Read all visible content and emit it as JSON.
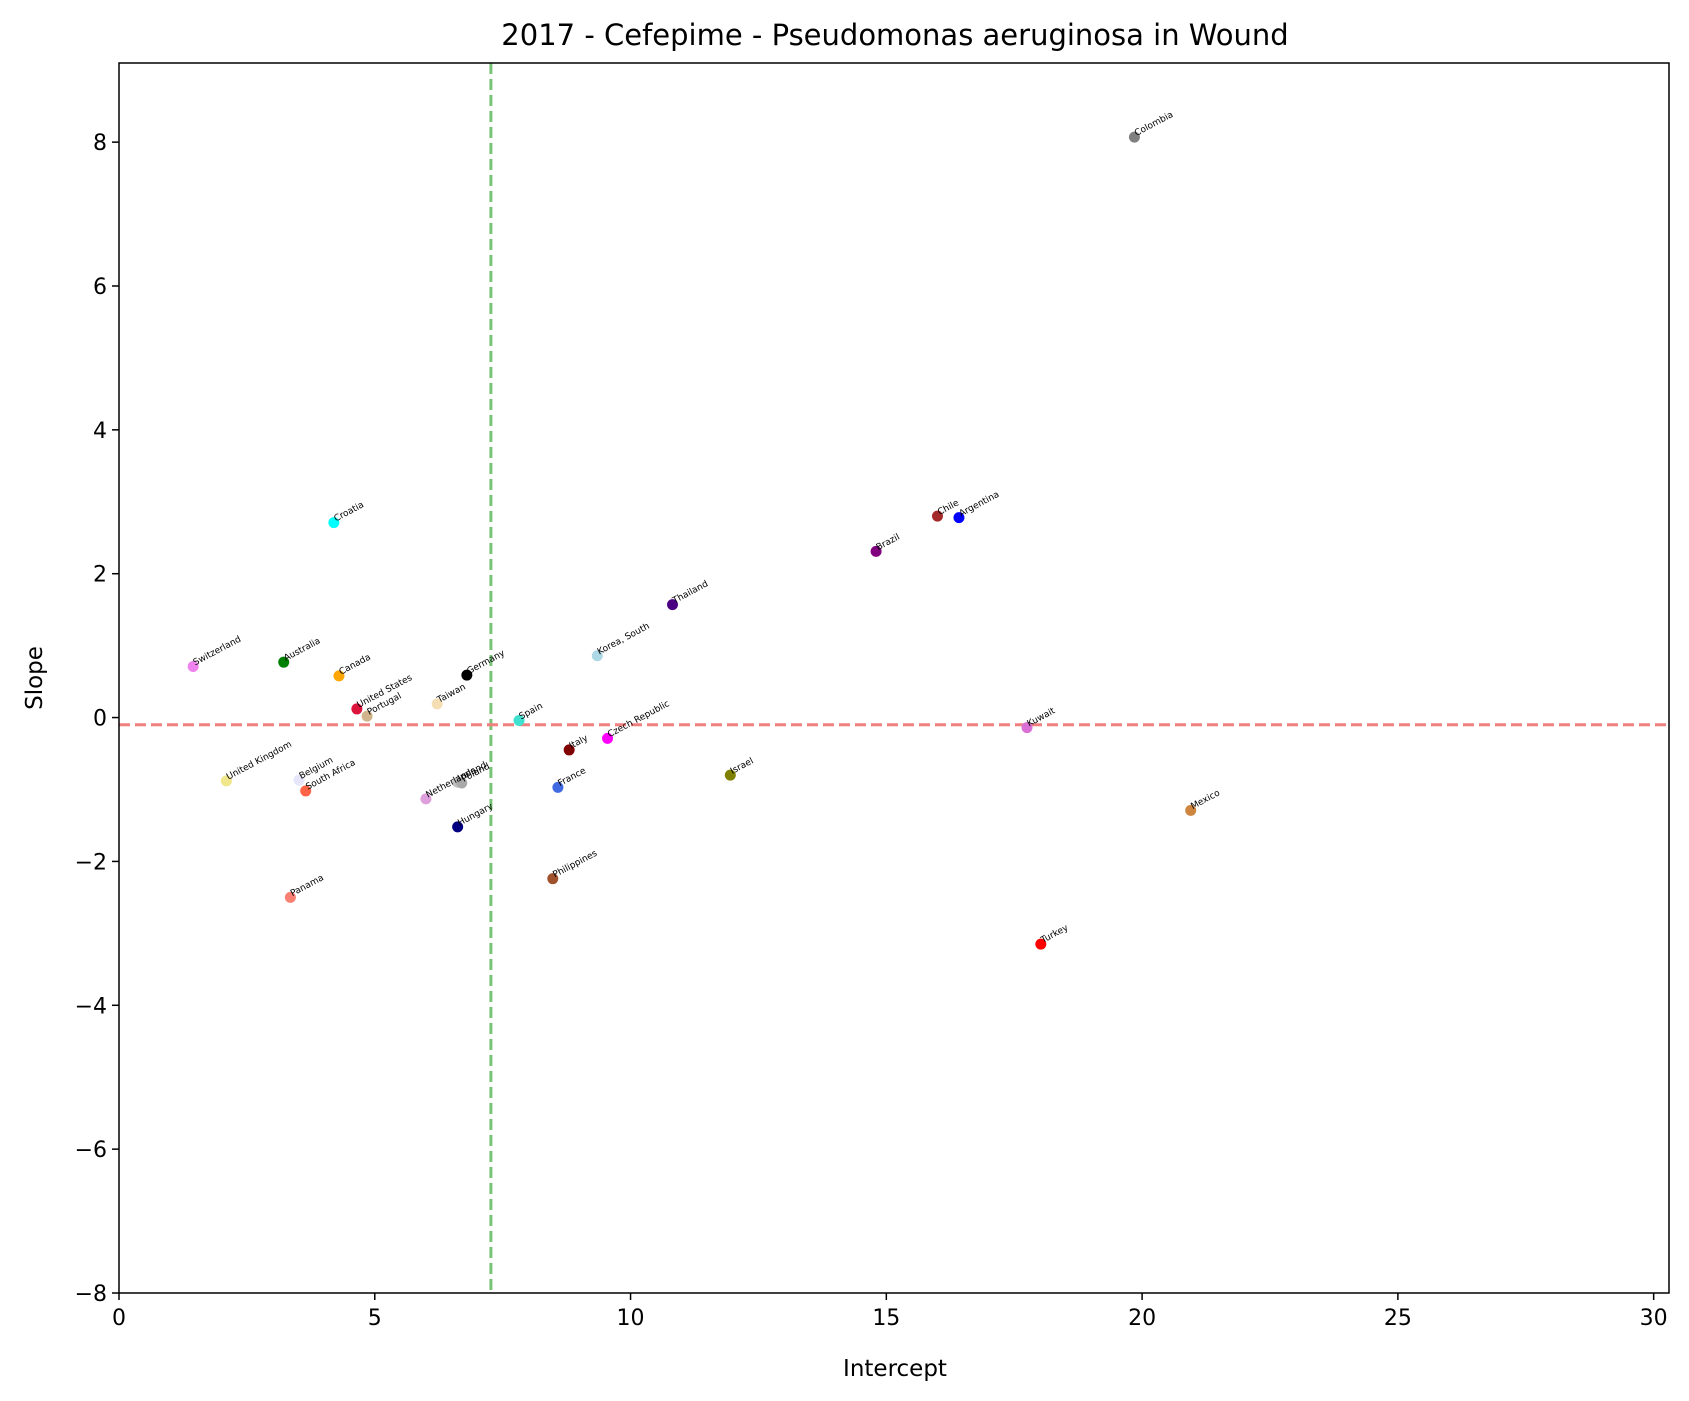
{
  "chart_data": {
    "type": "scatter",
    "title": "2017 - Cefepime - Pseudomonas aeruginosa in Wound",
    "xlabel": "Intercept",
    "ylabel": "Slope",
    "xlim": [
      0,
      30.3
    ],
    "ylim": [
      -8.0,
      9.1
    ],
    "xticks": [
      0,
      5,
      10,
      15,
      20,
      25,
      30
    ],
    "yticks": [
      -8,
      -6,
      -4,
      -2,
      0,
      2,
      4,
      6,
      8
    ],
    "xtick_labels": [
      "0",
      "5",
      "10",
      "15",
      "20",
      "25",
      "30"
    ],
    "ytick_labels": [
      "−8",
      "−6",
      "−4",
      "−2",
      "0",
      "2",
      "4",
      "6",
      "8"
    ],
    "vline": {
      "x": 7.27,
      "color": "#77c477"
    },
    "hline": {
      "y": -0.1,
      "color": "#f08080"
    },
    "grid": false,
    "points": [
      {
        "name": "Colombia",
        "x": 19.85,
        "y": 8.07,
        "color": "#808080"
      },
      {
        "name": "Chile",
        "x": 16.0,
        "y": 2.8,
        "color": "#a52a2a"
      },
      {
        "name": "Argentina",
        "x": 16.42,
        "y": 2.78,
        "color": "#0000ff"
      },
      {
        "name": "Brazil",
        "x": 14.8,
        "y": 2.31,
        "color": "#800080"
      },
      {
        "name": "Thailand",
        "x": 10.82,
        "y": 1.57,
        "color": "#4b0082"
      },
      {
        "name": "Korea, South",
        "x": 9.35,
        "y": 0.86,
        "color": "#add8e6"
      },
      {
        "name": "Croatia",
        "x": 4.2,
        "y": 2.71,
        "color": "#00ffff"
      },
      {
        "name": "Switzerland",
        "x": 1.45,
        "y": 0.71,
        "color": "#ee82ee"
      },
      {
        "name": "Australia",
        "x": 3.22,
        "y": 0.77,
        "color": "#008000"
      },
      {
        "name": "Canada",
        "x": 4.3,
        "y": 0.58,
        "color": "#ffa500"
      },
      {
        "name": "Germany",
        "x": 6.8,
        "y": 0.59,
        "color": "#000000"
      },
      {
        "name": "United States",
        "x": 4.65,
        "y": 0.12,
        "color": "#dc143c"
      },
      {
        "name": "Portugal",
        "x": 4.85,
        "y": 0.02,
        "color": "#d2b48c"
      },
      {
        "name": "Taiwan",
        "x": 6.22,
        "y": 0.19,
        "color": "#f5deb3"
      },
      {
        "name": "Spain",
        "x": 7.82,
        "y": -0.04,
        "color": "#40e0d0"
      },
      {
        "name": "Czech Republic",
        "x": 9.55,
        "y": -0.29,
        "color": "#ff00ff"
      },
      {
        "name": "Italy",
        "x": 8.8,
        "y": -0.45,
        "color": "#800000"
      },
      {
        "name": "Kuwait",
        "x": 17.75,
        "y": -0.14,
        "color": "#da70d6"
      },
      {
        "name": "United Kingdom",
        "x": 2.1,
        "y": -0.88,
        "color": "#f0e68c"
      },
      {
        "name": "Belgium",
        "x": 3.52,
        "y": -0.87,
        "color": "#e6e6fa"
      },
      {
        "name": "South Africa",
        "x": 3.65,
        "y": -1.02,
        "color": "#ff6347"
      },
      {
        "name": "Netherlands",
        "x": 6.0,
        "y": -1.13,
        "color": "#dda0dd"
      },
      {
        "name": "Ireland",
        "x": 6.62,
        "y": -0.9,
        "color": "#c0c0c0"
      },
      {
        "name": "Poland",
        "x": 6.7,
        "y": -0.91,
        "color": "#a9a9a9"
      },
      {
        "name": "France",
        "x": 8.58,
        "y": -0.97,
        "color": "#4169e1"
      },
      {
        "name": "Israel",
        "x": 11.95,
        "y": -0.8,
        "color": "#808000"
      },
      {
        "name": "Mexico",
        "x": 20.95,
        "y": -1.29,
        "color": "#cd853f"
      },
      {
        "name": "Hungary",
        "x": 6.62,
        "y": -1.52,
        "color": "#000080"
      },
      {
        "name": "Philippines",
        "x": 8.48,
        "y": -2.24,
        "color": "#a0522d"
      },
      {
        "name": "Panama",
        "x": 3.35,
        "y": -2.5,
        "color": "#fa8072"
      },
      {
        "name": "Turkey",
        "x": 18.02,
        "y": -3.15,
        "color": "#ff0000"
      }
    ]
  }
}
